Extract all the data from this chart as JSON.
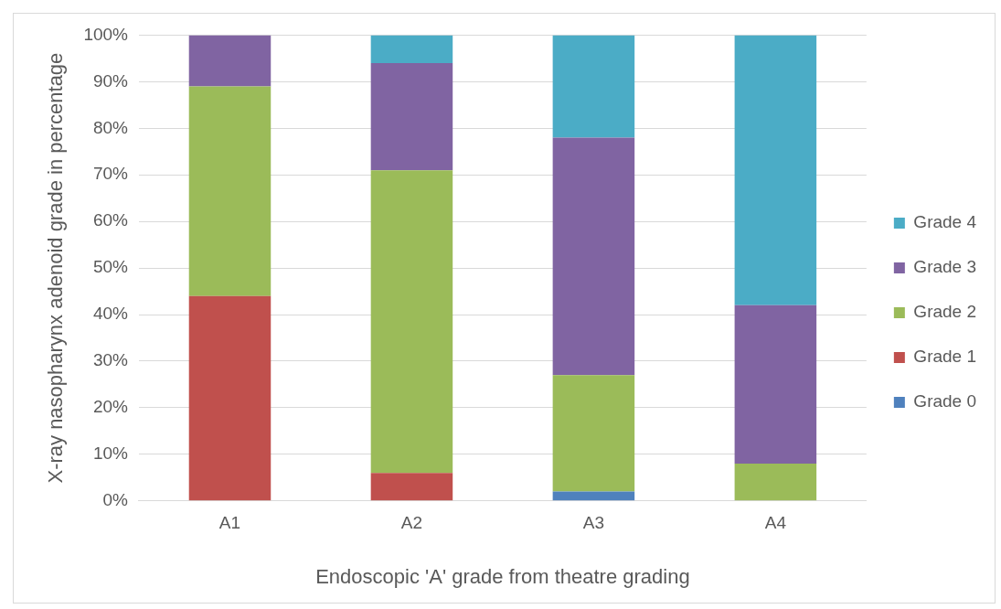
{
  "chart_data": {
    "type": "bar",
    "stacked": true,
    "xlabel": "Endoscopic 'A' grade from theatre grading",
    "ylabel": "X-ray nasopharynx adenoid grade in percentage",
    "categories": [
      "A1",
      "A2",
      "A3",
      "A4"
    ],
    "series": [
      {
        "name": "Grade 0",
        "color": "#4f81bd",
        "values": [
          0,
          0,
          2,
          0
        ]
      },
      {
        "name": "Grade 1",
        "color": "#c0504d",
        "values": [
          44,
          6,
          0,
          0
        ]
      },
      {
        "name": "Grade 2",
        "color": "#9bbb59",
        "values": [
          45,
          65,
          25,
          8
        ]
      },
      {
        "name": "Grade 3",
        "color": "#8064a2",
        "values": [
          11,
          23,
          51,
          34
        ]
      },
      {
        "name": "Grade 4",
        "color": "#4bacc6",
        "values": [
          0,
          6,
          22,
          58
        ]
      }
    ],
    "ylim": [
      0,
      100
    ],
    "yticks": [
      {
        "value": 0,
        "label": "0%"
      },
      {
        "value": 10,
        "label": "10%"
      },
      {
        "value": 20,
        "label": "20%"
      },
      {
        "value": 30,
        "label": "30%"
      },
      {
        "value": 40,
        "label": "40%"
      },
      {
        "value": 50,
        "label": "50%"
      },
      {
        "value": 60,
        "label": "60%"
      },
      {
        "value": 70,
        "label": "70%"
      },
      {
        "value": 80,
        "label": "80%"
      },
      {
        "value": 90,
        "label": "90%"
      },
      {
        "value": 100,
        "label": "100%"
      }
    ],
    "grid": "y",
    "legend": "right"
  }
}
